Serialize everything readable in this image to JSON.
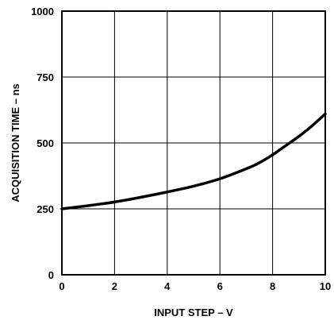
{
  "chart_data": {
    "type": "line",
    "title": "",
    "xlabel": "INPUT STEP – V",
    "ylabel": "ACQUISITION TIME – ns",
    "xlim": [
      0,
      10
    ],
    "ylim": [
      0,
      1000
    ],
    "xticks": [
      0,
      2,
      4,
      6,
      8,
      10
    ],
    "yticks": [
      0,
      250,
      500,
      750,
      1000
    ],
    "xtick_labels": [
      "0",
      "2",
      "4",
      "6",
      "8",
      "10"
    ],
    "ytick_labels": [
      "0",
      "250",
      "500",
      "750",
      "1000"
    ],
    "grid": true,
    "legend": "none",
    "series": [
      {
        "x": [
          0,
          1,
          2,
          3,
          4,
          5,
          6,
          7,
          7.5,
          8,
          8.5,
          9,
          9.5,
          10
        ],
        "y": [
          250,
          262,
          276,
          294,
          314,
          336,
          364,
          402,
          425,
          455,
          490,
          525,
          565,
          610
        ]
      }
    ],
    "colors": {
      "line": "#000000",
      "grid": "#000000",
      "frame": "#000000",
      "background": "#ffffff"
    }
  }
}
